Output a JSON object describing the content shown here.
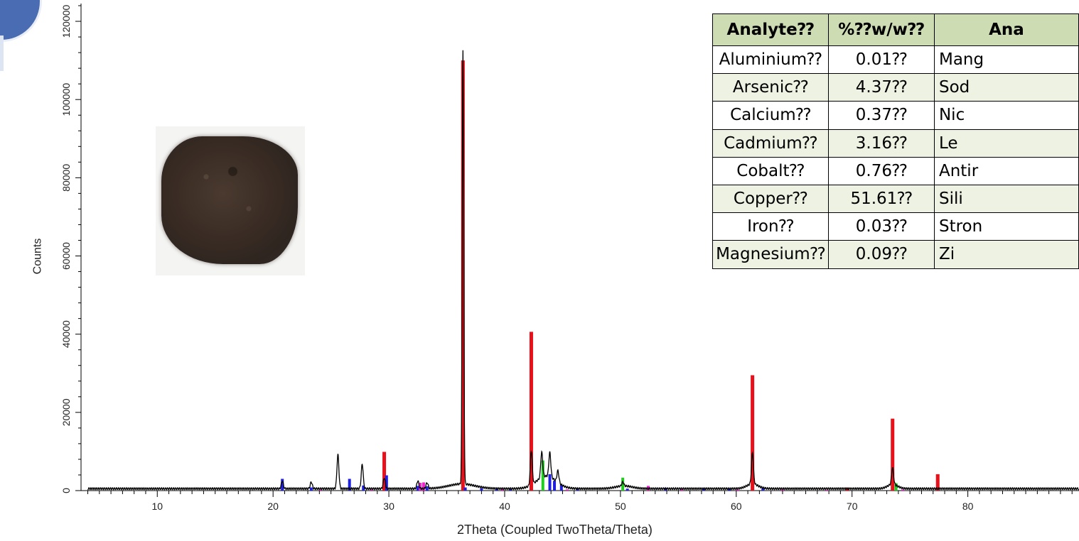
{
  "chart_data": {
    "type": "line",
    "xlabel": "2Theta (Coupled TwoTheta/Theta)",
    "ylabel": "Counts",
    "xlim": [
      3.6,
      89.6
    ],
    "ylim": [
      0,
      125000
    ],
    "x_ticks": [
      "10",
      "20",
      "30",
      "40",
      "50",
      "60",
      "70",
      "80"
    ],
    "y_ticks": [
      "0",
      "20000",
      "40000",
      "60000",
      "80000",
      "100000",
      "120000"
    ],
    "pattern": {
      "name": "",
      "color": "#000000",
      "baseline": 500,
      "peaks": [
        {
          "x": 20.8,
          "y": 2500
        },
        {
          "x": 23.3,
          "y": 2200
        },
        {
          "x": 25.6,
          "y": 9200
        },
        {
          "x": 27.7,
          "y": 6800
        },
        {
          "x": 29.6,
          "y": 3300
        },
        {
          "x": 32.5,
          "y": 2500
        },
        {
          "x": 33.3,
          "y": 2000
        },
        {
          "x": 36.4,
          "y": 111500
        },
        {
          "x": 42.3,
          "y": 9200
        },
        {
          "x": 43.2,
          "y": 7000
        },
        {
          "x": 43.9,
          "y": 6800
        },
        {
          "x": 44.6,
          "y": 3500
        },
        {
          "x": 50.2,
          "y": 1500
        },
        {
          "x": 61.4,
          "y": 8500
        },
        {
          "x": 73.5,
          "y": 4800
        }
      ]
    },
    "reference_series": [
      {
        "name": "",
        "color": "#e8101a",
        "lines": [
          {
            "x": 29.6,
            "y": 9900
          },
          {
            "x": 36.4,
            "y": 110000
          },
          {
            "x": 42.3,
            "y": 40600
          },
          {
            "x": 61.4,
            "y": 29500
          },
          {
            "x": 69.6,
            "y": 700
          },
          {
            "x": 73.5,
            "y": 18400
          },
          {
            "x": 77.4,
            "y": 4200
          }
        ]
      },
      {
        "name": "",
        "color": "#1f1fe0",
        "lines": [
          {
            "x": 20.8,
            "y": 3000
          },
          {
            "x": 23.3,
            "y": 800
          },
          {
            "x": 26.6,
            "y": 3000
          },
          {
            "x": 27.8,
            "y": 1300
          },
          {
            "x": 29.8,
            "y": 3900
          },
          {
            "x": 32.5,
            "y": 1200
          },
          {
            "x": 33.3,
            "y": 1100
          },
          {
            "x": 36.6,
            "y": 800
          },
          {
            "x": 38.0,
            "y": 600
          },
          {
            "x": 39.3,
            "y": 500
          },
          {
            "x": 40.5,
            "y": 500
          },
          {
            "x": 43.9,
            "y": 4200
          },
          {
            "x": 44.3,
            "y": 2500
          },
          {
            "x": 44.9,
            "y": 1400
          },
          {
            "x": 46.3,
            "y": 600
          },
          {
            "x": 50.6,
            "y": 500
          },
          {
            "x": 53.9,
            "y": 700
          },
          {
            "x": 57.2,
            "y": 600
          },
          {
            "x": 59.4,
            "y": 500
          },
          {
            "x": 62.3,
            "y": 600
          }
        ]
      },
      {
        "name": "",
        "color": "#1fcc1f",
        "lines": [
          {
            "x": 43.3,
            "y": 7700
          },
          {
            "x": 50.2,
            "y": 3300
          },
          {
            "x": 73.8,
            "y": 1900
          }
        ]
      },
      {
        "name": "",
        "color": "#ee22cc",
        "lines": [
          {
            "x": 24.1,
            "y": 300
          },
          {
            "x": 28.5,
            "y": 300
          },
          {
            "x": 32.7,
            "y": 2000
          },
          {
            "x": 33.0,
            "y": 2100
          },
          {
            "x": 39.8,
            "y": 500
          },
          {
            "x": 45.4,
            "y": 300
          },
          {
            "x": 52.4,
            "y": 1200
          },
          {
            "x": 55.3,
            "y": 400
          },
          {
            "x": 60.1,
            "y": 300
          },
          {
            "x": 64.0,
            "y": 300
          },
          {
            "x": 67.8,
            "y": 200
          },
          {
            "x": 74.4,
            "y": 300
          }
        ]
      }
    ]
  },
  "table": {
    "headers": [
      "Analyte⁇",
      "%⁇w/w⁇",
      "Ana"
    ],
    "rows": [
      [
        "Aluminium⁇",
        "0.01⁇",
        "Mang"
      ],
      [
        "Arsenic⁇",
        "4.37⁇",
        "Sod"
      ],
      [
        "Calcium⁇",
        "0.37⁇",
        "Nic"
      ],
      [
        "Cadmium⁇",
        "3.16⁇",
        "Le"
      ],
      [
        "Cobalt⁇",
        "0.76⁇",
        "Antir"
      ],
      [
        "Copper⁇",
        "51.61⁇",
        "Sili"
      ],
      [
        "Iron⁇",
        "0.03⁇",
        "Stron"
      ],
      [
        "Magnesium⁇",
        "0.09⁇",
        "Zi"
      ]
    ]
  }
}
